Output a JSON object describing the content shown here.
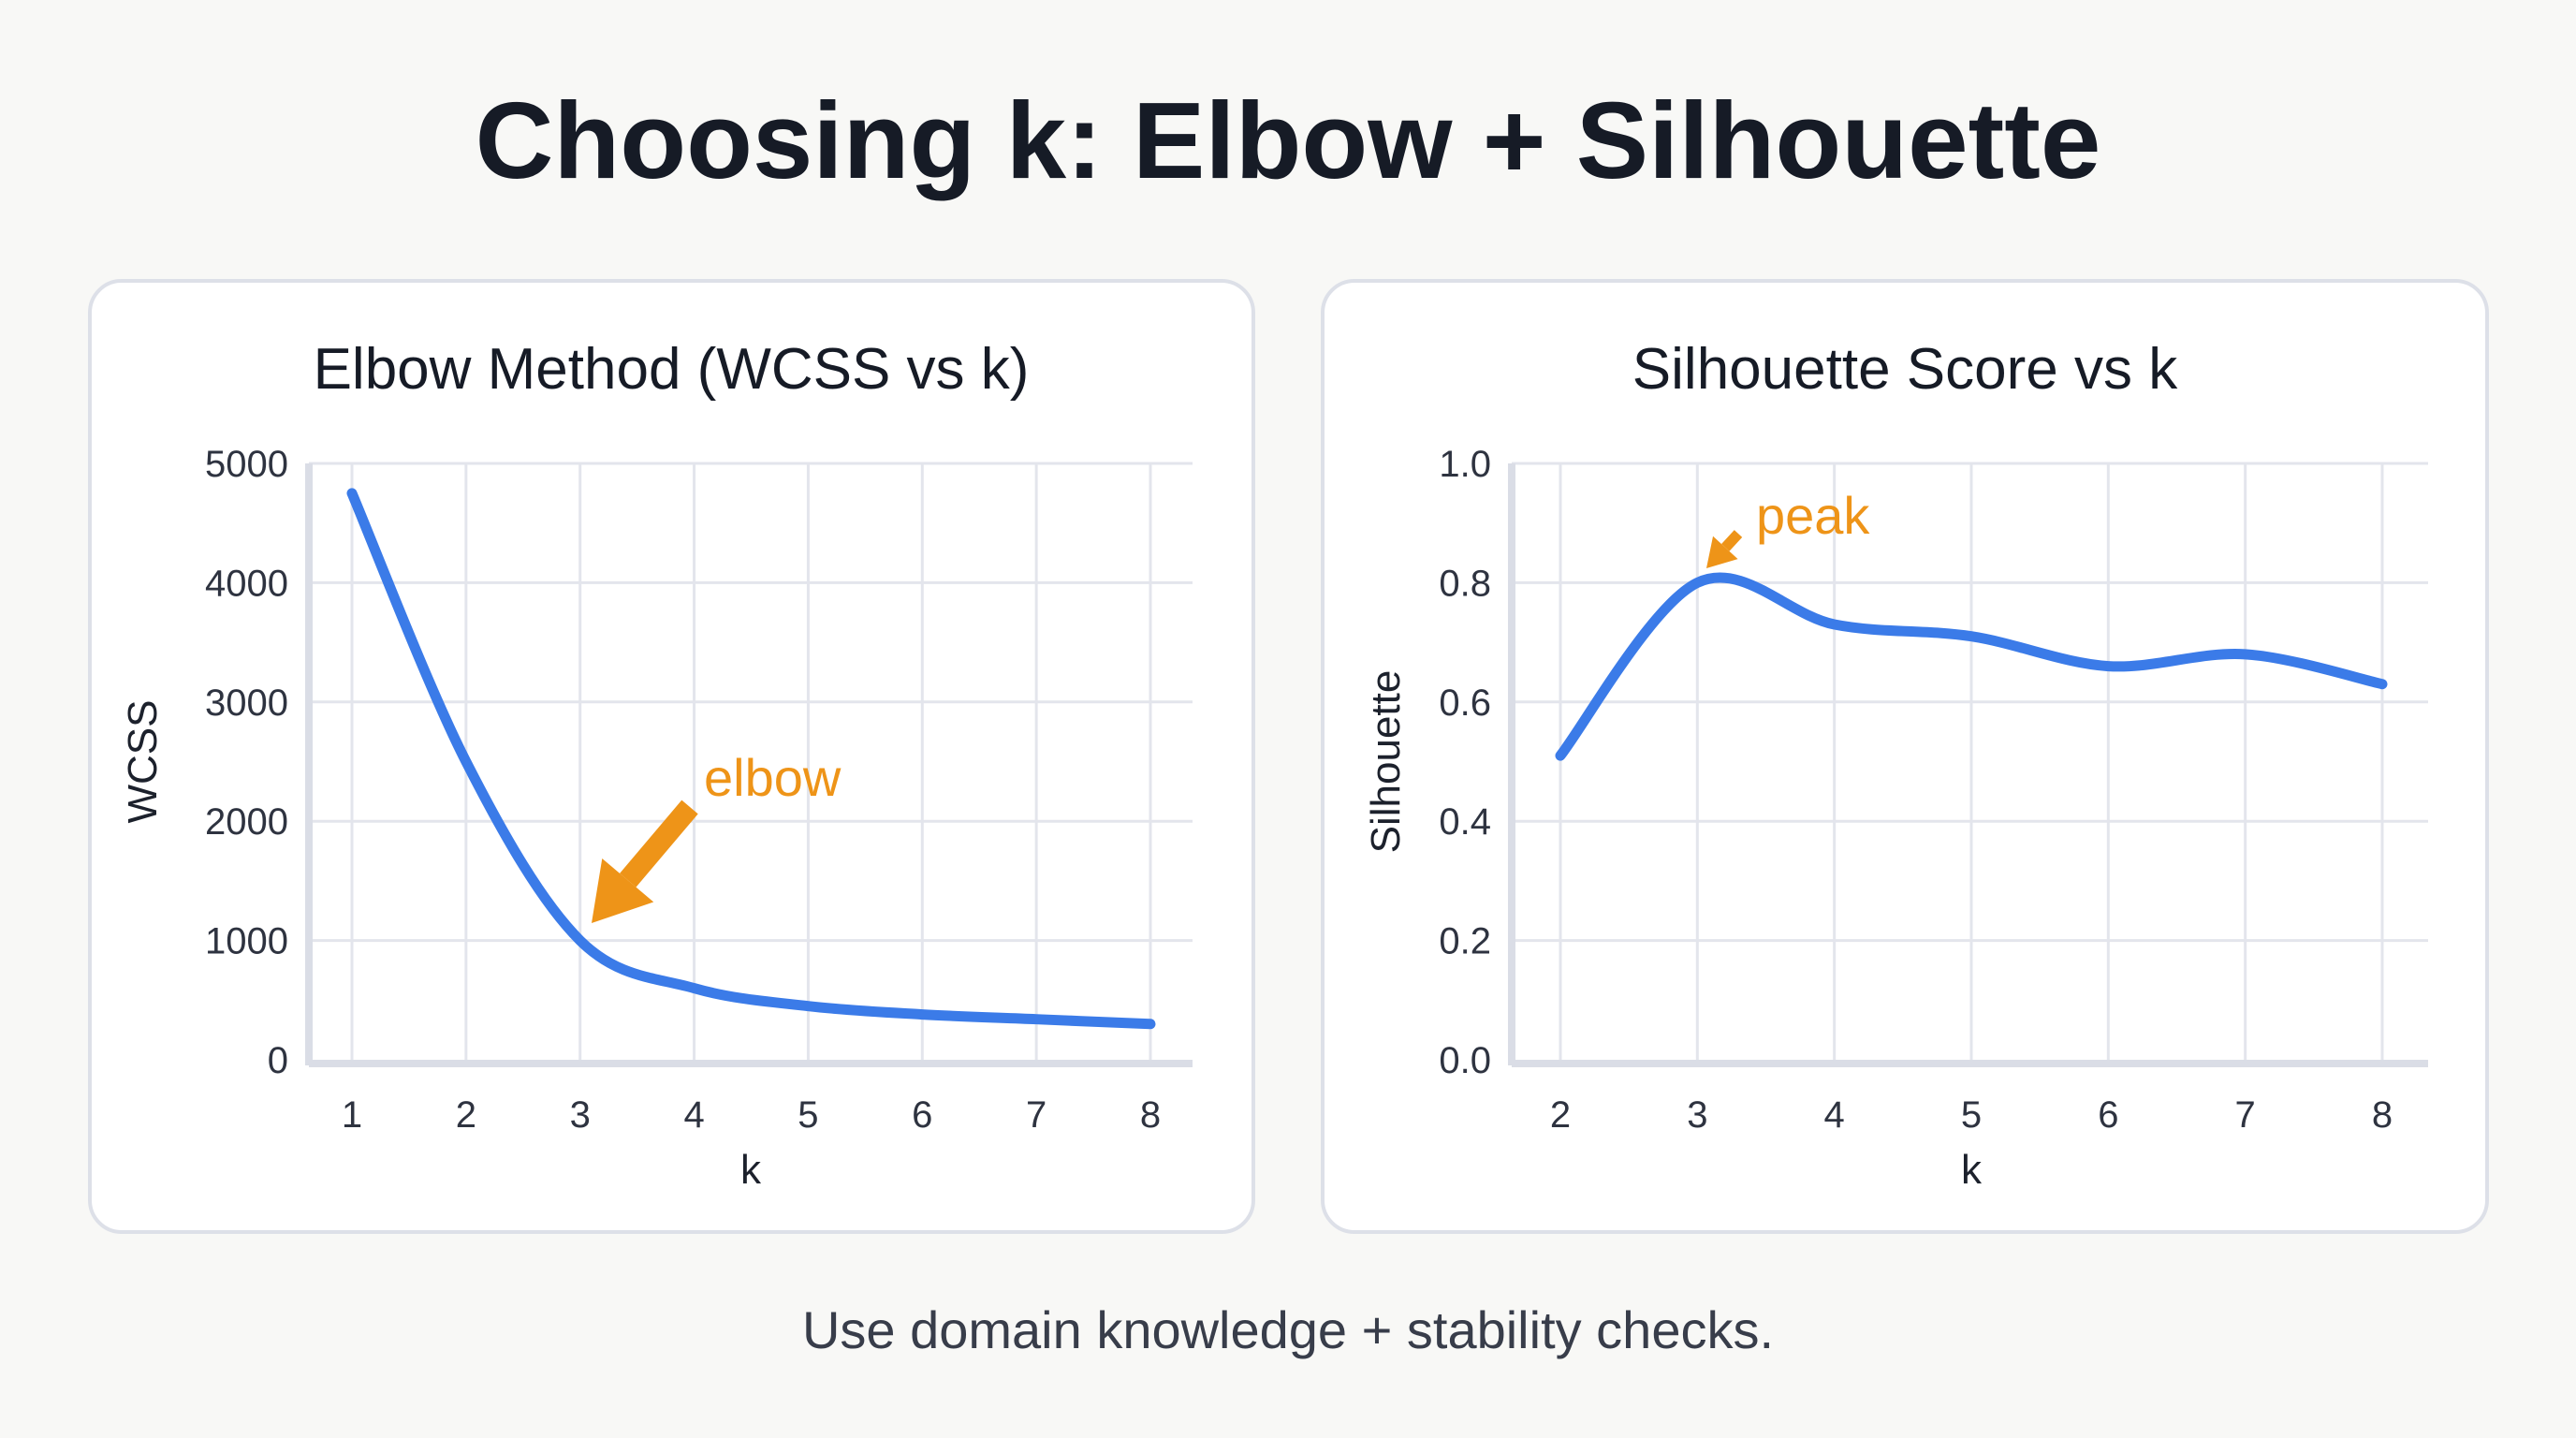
{
  "title": "Choosing k: Elbow + Silhouette",
  "footer": "Use domain knowledge + stability checks.",
  "colors": {
    "line": "#3b7be8",
    "annotation": "#ee9418",
    "grid": "#e3e5ec",
    "panel_border": "#dde0e8"
  },
  "chart_data": [
    {
      "type": "line",
      "title": "Elbow Method (WCSS vs k)",
      "xlabel": "k",
      "ylabel": "WCSS",
      "x": [
        1,
        2,
        3,
        4,
        5,
        6,
        7,
        8
      ],
      "values": [
        4750,
        2500,
        1000,
        600,
        450,
        380,
        340,
        300
      ],
      "xlim": [
        1,
        8
      ],
      "ylim": [
        0,
        5000
      ],
      "yticks": [
        "0",
        "1000",
        "2000",
        "3000",
        "4000",
        "5000"
      ],
      "xticks": [
        "1",
        "2",
        "3",
        "4",
        "5",
        "6",
        "7",
        "8"
      ],
      "grid": true,
      "annotation": {
        "text": "elbow",
        "x": 3,
        "y": 1000
      }
    },
    {
      "type": "line",
      "title": "Silhouette Score vs k",
      "xlabel": "k",
      "ylabel": "Silhouette",
      "x": [
        2,
        3,
        4,
        5,
        6,
        7,
        8
      ],
      "values": [
        0.51,
        0.8,
        0.73,
        0.71,
        0.66,
        0.68,
        0.63
      ],
      "xlim": [
        2,
        8
      ],
      "ylim": [
        0,
        1.0
      ],
      "yticks": [
        "0.0",
        "0.2",
        "0.4",
        "0.6",
        "0.8",
        "1.0"
      ],
      "xticks": [
        "2",
        "3",
        "4",
        "5",
        "6",
        "7",
        "8"
      ],
      "grid": true,
      "annotation": {
        "text": "peak",
        "x": 3,
        "y": 0.8
      }
    }
  ]
}
